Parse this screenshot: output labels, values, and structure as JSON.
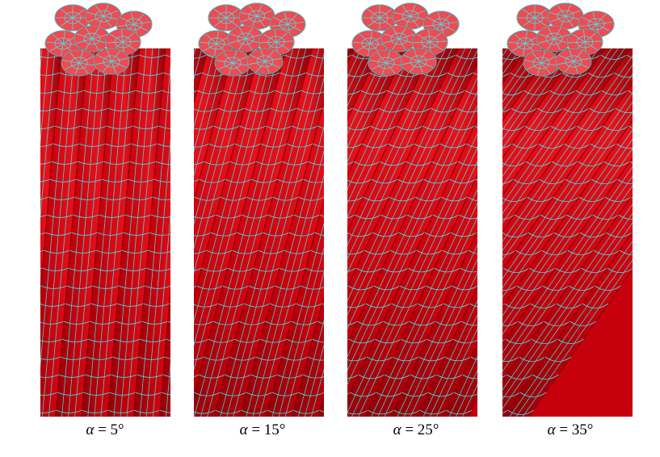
{
  "figure": {
    "panels": [
      {
        "symbol": "α",
        "equals": " = ",
        "angle": "5°"
      },
      {
        "symbol": "α",
        "equals": " = ",
        "angle": "15°"
      },
      {
        "symbol": "α",
        "equals": " = ",
        "angle": "25°"
      },
      {
        "symbol": "α",
        "equals": " = ",
        "angle": "35°"
      }
    ],
    "lay_angles_deg": [
      5,
      15,
      25,
      35
    ],
    "colors": {
      "strand": "#e8111b",
      "strand_dark": "#8e0008",
      "strand_mid": "#c6000c",
      "mesh": "#3fe6e6",
      "end_face": "#f04a52"
    }
  }
}
